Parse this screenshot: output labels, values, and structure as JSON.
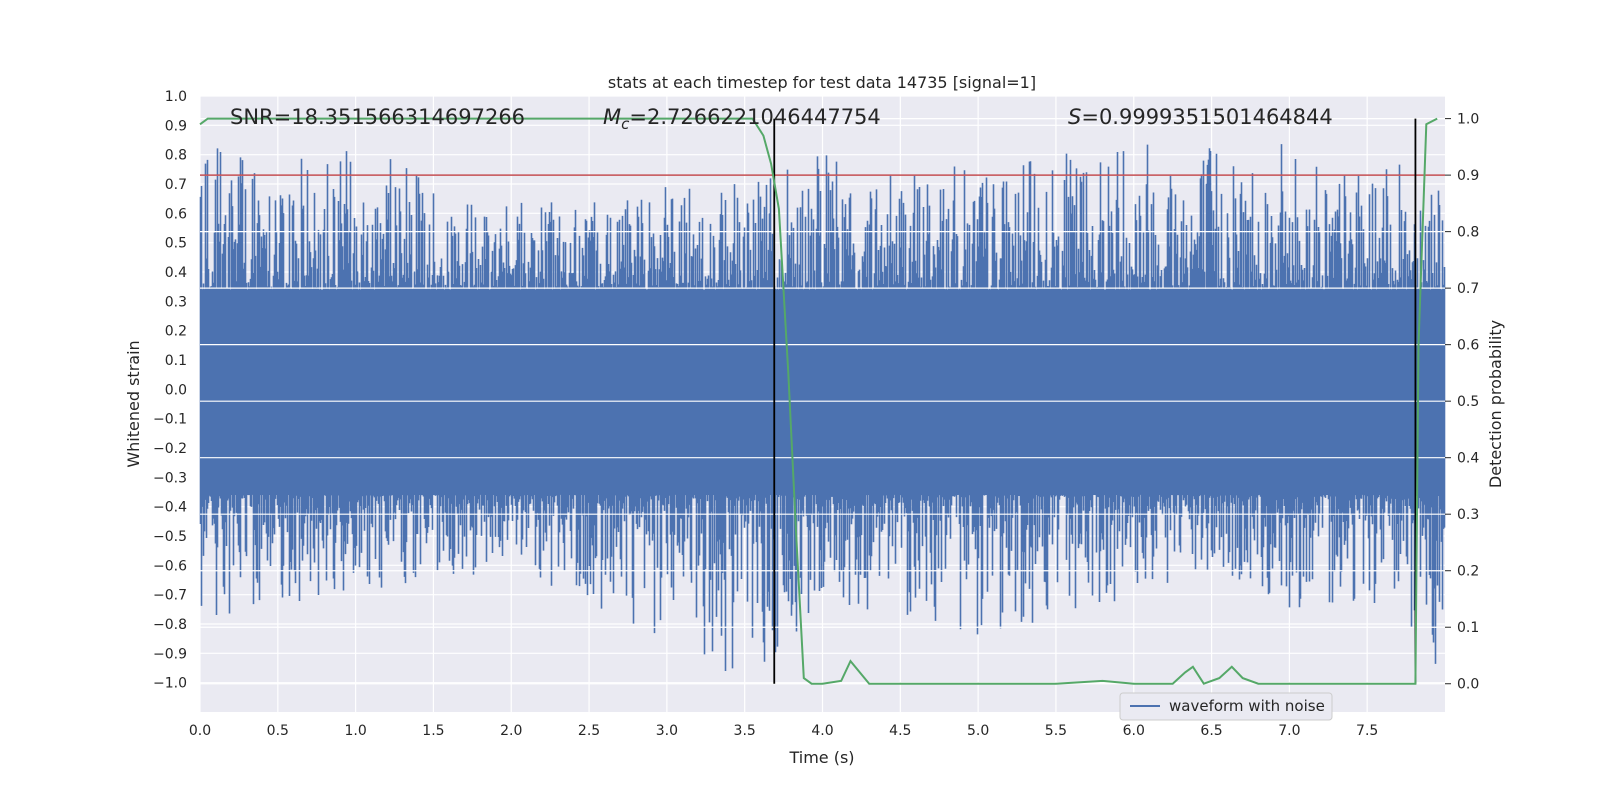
{
  "chart_data": {
    "type": "line",
    "title": "stats at each timestep for test data 14735 [signal=1]",
    "xlabel": "Time (s)",
    "ylabel": "Whitened strain",
    "y2label": "Detection probability",
    "xlim": [
      0.0,
      8.0
    ],
    "ylim": [
      -1.1,
      1.0
    ],
    "y2lim": [
      -0.05,
      1.04
    ],
    "xticks": [
      "0.0",
      "0.5",
      "1.0",
      "1.5",
      "2.0",
      "2.5",
      "3.0",
      "3.5",
      "4.0",
      "4.5",
      "5.0",
      "5.5",
      "6.0",
      "6.5",
      "7.0",
      "7.5"
    ],
    "yticks": [
      "1.0",
      "0.9",
      "0.8",
      "0.7",
      "0.6",
      "0.5",
      "0.4",
      "0.3",
      "0.2",
      "0.1",
      "0.0",
      "−0.1",
      "−0.2",
      "−0.3",
      "−0.4",
      "−0.5",
      "−0.6",
      "−0.7",
      "−0.8",
      "−0.9",
      "−1.0"
    ],
    "y2ticks": [
      "1.0",
      "0.9",
      "0.8",
      "0.7",
      "0.6",
      "0.5",
      "0.4",
      "0.3",
      "0.2",
      "0.1",
      "0.0"
    ],
    "annotations": {
      "snr": "SNR=18.351566314697266",
      "mc_symbol": "M",
      "mc_sub": "c",
      "mc_value": "=2.7266221046447754",
      "s_symbol": "S",
      "s_value": "=0.9999351501464844"
    },
    "threshold": {
      "value": 0.9,
      "color": "#c44e52"
    },
    "vlines": [
      3.69,
      7.81
    ],
    "legend": {
      "label": "waveform with noise",
      "position": "lower-right"
    },
    "series": [
      {
        "name": "waveform with noise",
        "axis": "left",
        "color": "#4c72b0",
        "x": [
          0.0,
          0.5,
          1.0,
          1.5,
          2.0,
          2.5,
          3.0,
          3.5,
          4.0,
          4.5,
          5.0,
          5.5,
          6.0,
          6.5,
          7.0,
          7.5,
          8.0
        ],
        "max": [
          0.87,
          0.77,
          0.84,
          0.72,
          0.65,
          0.64,
          0.72,
          0.7,
          0.82,
          0.79,
          0.76,
          0.79,
          0.92,
          0.87,
          0.84,
          0.73,
          0.82
        ],
        "min": [
          -0.8,
          -0.74,
          -0.69,
          -0.66,
          -0.62,
          -0.74,
          -0.85,
          -1.0,
          -0.75,
          -0.77,
          -0.85,
          -0.78,
          -0.71,
          -0.66,
          -0.75,
          -0.72,
          -0.97
        ]
      },
      {
        "name": "detection probability",
        "axis": "right",
        "color": "#55a868",
        "x": [
          0.0,
          0.05,
          1.0,
          2.0,
          3.0,
          3.55,
          3.62,
          3.67,
          3.72,
          3.78,
          3.83,
          3.88,
          3.93,
          4.0,
          4.12,
          4.18,
          4.3,
          4.5,
          5.0,
          5.5,
          5.8,
          6.0,
          6.25,
          6.33,
          6.38,
          6.45,
          6.55,
          6.63,
          6.7,
          6.8,
          7.0,
          7.5,
          7.8,
          7.81,
          7.83,
          7.88,
          7.95
        ],
        "values": [
          0.99,
          1.0,
          1.0,
          1.0,
          1.0,
          1.0,
          0.97,
          0.92,
          0.84,
          0.55,
          0.27,
          0.01,
          0.0,
          0.0,
          0.005,
          0.04,
          0.0,
          0.0,
          0.0,
          0.0,
          0.005,
          0.0,
          0.0,
          0.02,
          0.03,
          0.0,
          0.01,
          0.03,
          0.01,
          0.0,
          0.0,
          0.0,
          0.0,
          0.0,
          0.6,
          0.99,
          1.0
        ]
      }
    ]
  }
}
